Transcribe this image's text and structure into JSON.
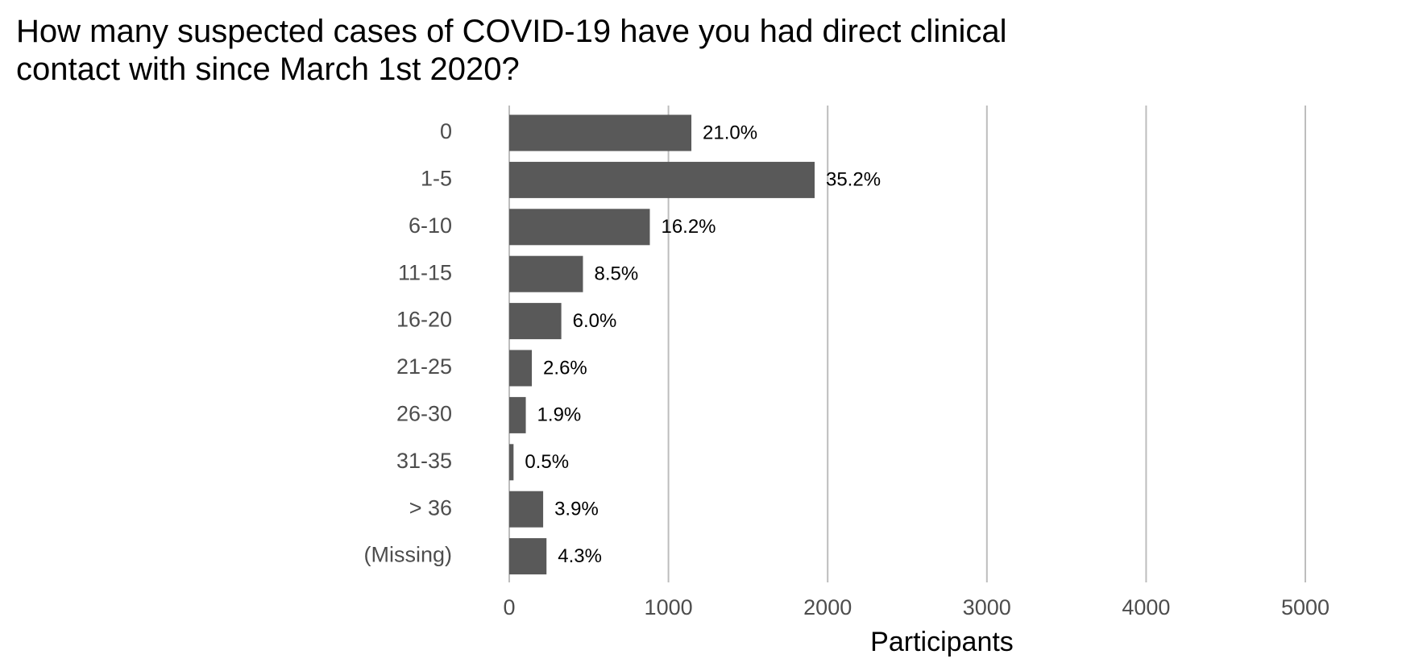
{
  "chart_data": {
    "type": "barh",
    "title_lines": [
      "How many suspected cases of COVID-19 have you had direct clinical",
      "contact with since March 1st 2020?"
    ],
    "categories": [
      "0",
      "1-5",
      "6-10",
      "11-15",
      "16-20",
      "21-25",
      "26-30",
      "31-35",
      "> 36",
      "(Missing)"
    ],
    "values": [
      1144,
      1918,
      883,
      463,
      327,
      142,
      104,
      27,
      213,
      234
    ],
    "data_labels": [
      "21.0%",
      "35.2%",
      "16.2%",
      "8.5%",
      "6.0%",
      "2.6%",
      "1.9%",
      "0.5%",
      "3.9%",
      "4.3%"
    ],
    "color": "#595959",
    "xlabel": "Participants",
    "xlim": [
      0,
      5000
    ],
    "xticks": [
      0,
      1000,
      2000,
      3000,
      4000,
      5000
    ],
    "grid": true
  }
}
